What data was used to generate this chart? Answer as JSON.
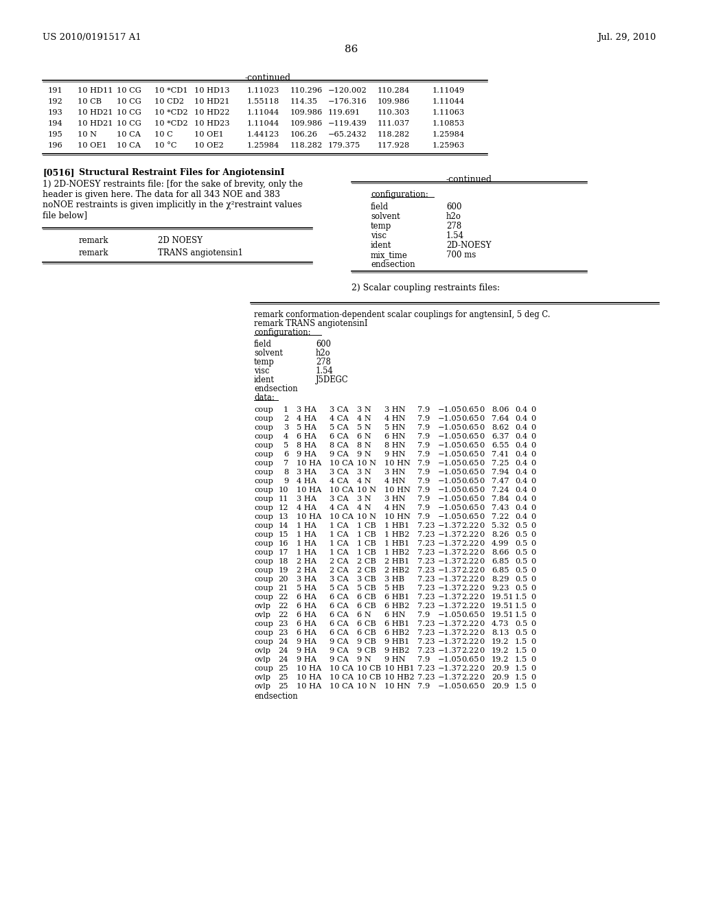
{
  "page_header_left": "US 2010/0191517 A1",
  "page_header_right": "Jul. 29, 2010",
  "page_number": "86",
  "bg_color": "#ffffff",
  "table1_title": "-continued",
  "table1_rows": [
    [
      "191",
      "10 HD11",
      "10 CG",
      "10 *CD1",
      "10 HD13",
      "1.11023",
      "110.296",
      "−120.002",
      "110.284",
      "1.11049"
    ],
    [
      "192",
      "10 CB",
      "10 CG",
      "10 CD2",
      "10 HD21",
      "1.55118",
      "114.35",
      "−176.316",
      "109.986",
      "1.11044"
    ],
    [
      "193",
      "10 HD21",
      "10 CG",
      "10 *CD2",
      "10 HD22",
      "1.11044",
      "109.986",
      "119.691",
      "110.303",
      "1.11063"
    ],
    [
      "194",
      "10 HD21",
      "10 CG",
      "10 *CD2",
      "10 HD23",
      "1.11044",
      "109.986",
      "−119.439",
      "111.037",
      "1.10853"
    ],
    [
      "195",
      "10 N",
      "10 CA",
      "10 C",
      "10 OE1",
      "1.44123",
      "106.26",
      "−65.2432",
      "118.282",
      "1.25984"
    ],
    [
      "196",
      "10 OE1",
      "10 CA",
      "10 °C",
      "10 OE2",
      "1.25984",
      "118.282",
      "179.375",
      "117.928",
      "1.25963"
    ]
  ],
  "section_label": "[0516]",
  "section_title": "Structural Restraint Files for AngiotensinI",
  "para_lines": [
    "1) 2D-NOESY restraints file: [for the sake of brevity, only the",
    "header is given here. The data for all 343 NOE and 383",
    "noNOE restraints is given implicitly in the χ²restraint values",
    "file below]"
  ],
  "left_table_rows": [
    [
      "remark",
      "2D NOESY"
    ],
    [
      "remark",
      "TRANS angiotensin1"
    ]
  ],
  "right_continued_title": "-continued",
  "right_config_label": "configuration:",
  "right_table1_rows": [
    [
      "field",
      "600"
    ],
    [
      "solvent",
      "h2o"
    ],
    [
      "temp",
      "278"
    ],
    [
      "visc",
      "1.54"
    ],
    [
      "ident",
      "2D-NOESY"
    ],
    [
      "mix_time",
      "700 ms"
    ],
    [
      "endsection",
      ""
    ]
  ],
  "section2": "2) Scalar coupling restraints files:",
  "scalar_header_lines": [
    "remark conformation-dependent scalar couplings for angtensinI, 5 deg C.",
    "remark TRANS angiotensinI",
    "configuration:"
  ],
  "scalar_config_rows": [
    [
      "field",
      "600"
    ],
    [
      "solvent",
      "h2o"
    ],
    [
      "temp",
      "278"
    ],
    [
      "visc",
      "1.54"
    ],
    [
      "ident",
      "J5DEGC"
    ],
    [
      "endsection",
      ""
    ],
    [
      "data:",
      ""
    ]
  ],
  "coup_rows": [
    [
      "coup",
      "1",
      "3 HA",
      "3 CA",
      "3 N",
      "3 HN",
      "7.9",
      "−1.05",
      "0.65",
      "0",
      "8.06",
      "0.4",
      "0"
    ],
    [
      "coup",
      "2",
      "4 HA",
      "4 CA",
      "4 N",
      "4 HN",
      "7.9",
      "−1.05",
      "0.65",
      "0",
      "7.64",
      "0.4",
      "0"
    ],
    [
      "coup",
      "3",
      "5 HA",
      "5 CA",
      "5 N",
      "5 HN",
      "7.9",
      "−1.05",
      "0.65",
      "0",
      "8.62",
      "0.4",
      "0"
    ],
    [
      "coup",
      "4",
      "6 HA",
      "6 CA",
      "6 N",
      "6 HN",
      "7.9",
      "−1.05",
      "0.65",
      "0",
      "6.37",
      "0.4",
      "0"
    ],
    [
      "coup",
      "5",
      "8 HA",
      "8 CA",
      "8 N",
      "8 HN",
      "7.9",
      "−1.05",
      "0.65",
      "0",
      "6.55",
      "0.4",
      "0"
    ],
    [
      "coup",
      "6",
      "9 HA",
      "9 CA",
      "9 N",
      "9 HN",
      "7.9",
      "−1.05",
      "0.65",
      "0",
      "7.41",
      "0.4",
      "0"
    ],
    [
      "coup",
      "7",
      "10 HA",
      "10 CA",
      "10 N",
      "10 HN",
      "7.9",
      "−1.05",
      "0.65",
      "0",
      "7.25",
      "0.4",
      "0"
    ],
    [
      "coup",
      "8",
      "3 HA",
      "3 CA",
      "3 N",
      "3 HN",
      "7.9",
      "−1.05",
      "0.65",
      "0",
      "7.94",
      "0.4",
      "0"
    ],
    [
      "coup",
      "9",
      "4 HA",
      "4 CA",
      "4 N",
      "4 HN",
      "7.9",
      "−1.05",
      "0.65",
      "0",
      "7.47",
      "0.4",
      "0"
    ],
    [
      "coup",
      "10",
      "10 HA",
      "10 CA",
      "10 N",
      "10 HN",
      "7.9",
      "−1.05",
      "0.65",
      "0",
      "7.24",
      "0.4",
      "0"
    ],
    [
      "coup",
      "11",
      "3 HA",
      "3 CA",
      "3 N",
      "3 HN",
      "7.9",
      "−1.05",
      "0.65",
      "0",
      "7.84",
      "0.4",
      "0"
    ],
    [
      "coup",
      "12",
      "4 HA",
      "4 CA",
      "4 N",
      "4 HN",
      "7.9",
      "−1.05",
      "0.65",
      "0",
      "7.43",
      "0.4",
      "0"
    ],
    [
      "coup",
      "13",
      "10 HA",
      "10 CA",
      "10 N",
      "10 HN",
      "7.9",
      "−1.05",
      "0.65",
      "0",
      "7.22",
      "0.4",
      "0"
    ],
    [
      "coup",
      "14",
      "1 HA",
      "1 CA",
      "1 CB",
      "1 HB1",
      "7.23",
      "−1.37",
      "2.22",
      "0",
      "5.32",
      "0.5",
      "0"
    ],
    [
      "coup",
      "15",
      "1 HA",
      "1 CA",
      "1 CB",
      "1 HB2",
      "7.23",
      "−1.37",
      "2.22",
      "0",
      "8.26",
      "0.5",
      "0"
    ],
    [
      "coup",
      "16",
      "1 HA",
      "1 CA",
      "1 CB",
      "1 HB1",
      "7.23",
      "−1.37",
      "2.22",
      "0",
      "4.99",
      "0.5",
      "0"
    ],
    [
      "coup",
      "17",
      "1 HA",
      "1 CA",
      "1 CB",
      "1 HB2",
      "7.23",
      "−1.37",
      "2.22",
      "0",
      "8.66",
      "0.5",
      "0"
    ],
    [
      "coup",
      "18",
      "2 HA",
      "2 CA",
      "2 CB",
      "2 HB1",
      "7.23",
      "−1.37",
      "2.22",
      "0",
      "6.85",
      "0.5",
      "0"
    ],
    [
      "coup",
      "19",
      "2 HA",
      "2 CA",
      "2 CB",
      "2 HB2",
      "7.23",
      "−1.37",
      "2.22",
      "0",
      "6.85",
      "0.5",
      "0"
    ],
    [
      "coup",
      "20",
      "3 HA",
      "3 CA",
      "3 CB",
      "3 HB",
      "7.23",
      "−1.37",
      "2.22",
      "0",
      "8.29",
      "0.5",
      "0"
    ],
    [
      "coup",
      "21",
      "5 HA",
      "5 CA",
      "5 CB",
      "5 HB",
      "7.23",
      "−1.37",
      "2.22",
      "0",
      "9.23",
      "0.5",
      "0"
    ],
    [
      "coup",
      "22",
      "6 HA",
      "6 CA",
      "6 CB",
      "6 HB1",
      "7.23",
      "−1.37",
      "2.22",
      "0",
      "19.51",
      "1.5",
      "0"
    ],
    [
      "ovlp",
      "22",
      "6 HA",
      "6 CA",
      "6 CB",
      "6 HB2",
      "7.23",
      "−1.37",
      "2.22",
      "0",
      "19.51",
      "1.5",
      "0"
    ],
    [
      "ovlp",
      "22",
      "6 HA",
      "6 CA",
      "6 N",
      "6 HN",
      "7.9",
      "−1.05",
      "0.65",
      "0",
      "19.51",
      "1.5",
      "0"
    ],
    [
      "coup",
      "23",
      "6 HA",
      "6 CA",
      "6 CB",
      "6 HB1",
      "7.23",
      "−1.37",
      "2.22",
      "0",
      "4.73",
      "0.5",
      "0"
    ],
    [
      "coup",
      "23",
      "6 HA",
      "6 CA",
      "6 CB",
      "6 HB2",
      "7.23",
      "−1.37",
      "2.22",
      "0",
      "8.13",
      "0.5",
      "0"
    ],
    [
      "coup",
      "24",
      "9 HA",
      "9 CA",
      "9 CB",
      "9 HB1",
      "7.23",
      "−1.37",
      "2.22",
      "0",
      "19.2",
      "1.5",
      "0"
    ],
    [
      "ovlp",
      "24",
      "9 HA",
      "9 CA",
      "9 CB",
      "9 HB2",
      "7.23",
      "−1.37",
      "2.22",
      "0",
      "19.2",
      "1.5",
      "0"
    ],
    [
      "ovlp",
      "24",
      "9 HA",
      "9 CA",
      "9 N",
      "9 HN",
      "7.9",
      "−1.05",
      "0.65",
      "0",
      "19.2",
      "1.5",
      "0"
    ],
    [
      "coup",
      "25",
      "10 HA",
      "10 CA",
      "10 CB",
      "10 HB1",
      "7.23",
      "−1.37",
      "2.22",
      "0",
      "20.9",
      "1.5",
      "0"
    ],
    [
      "ovlp",
      "25",
      "10 HA",
      "10 CA",
      "10 CB",
      "10 HB2",
      "7.23",
      "−1.37",
      "2.22",
      "0",
      "20.9",
      "1.5",
      "0"
    ],
    [
      "ovlp",
      "25",
      "10 HA",
      "10 CA",
      "10 N",
      "10 HN",
      "7.9",
      "−1.05",
      "0.65",
      "0",
      "20.9",
      "1.5",
      "0"
    ]
  ]
}
